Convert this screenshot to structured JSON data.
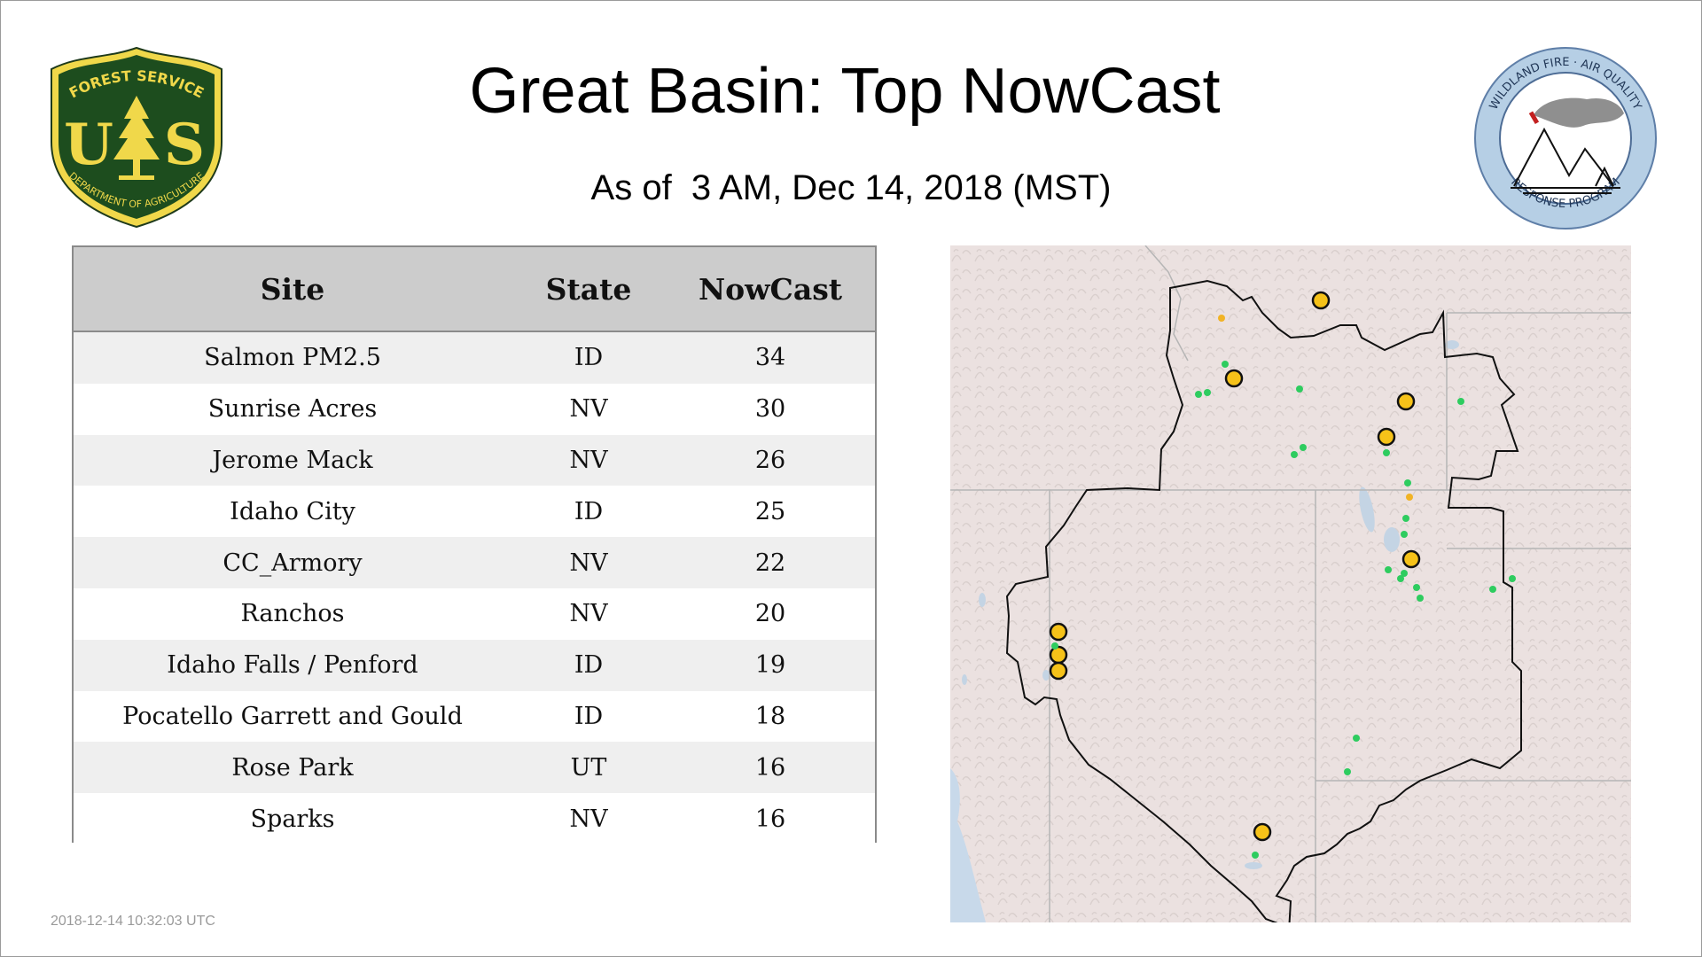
{
  "title": "Great Basin: Top NowCast",
  "subtitle": "As of  3 AM, Dec 14, 2018 (MST)",
  "logos": {
    "forest_service": {
      "top_text": "FOREST SERVICE",
      "letters_left": "U",
      "letters_right": "S",
      "bottom_text": "DEPARTMENT OF AGRICULTURE"
    },
    "wildland": {
      "top_text": "WILDLAND FIRE · AIR QUALITY",
      "bottom_text": "RESPONSE PROGRAM"
    }
  },
  "table": {
    "headers": {
      "site": "Site",
      "state": "State",
      "nowcast": "NowCast"
    },
    "rows": [
      {
        "site": "Salmon PM2.5",
        "state": "ID",
        "nowcast": "34"
      },
      {
        "site": "Sunrise Acres",
        "state": "NV",
        "nowcast": "30"
      },
      {
        "site": "Jerome Mack",
        "state": "NV",
        "nowcast": "26"
      },
      {
        "site": "Idaho City",
        "state": "ID",
        "nowcast": "25"
      },
      {
        "site": "CC_Armory",
        "state": "NV",
        "nowcast": "22"
      },
      {
        "site": "Ranchos",
        "state": "NV",
        "nowcast": "20"
      },
      {
        "site": "Idaho Falls / Penford",
        "state": "ID",
        "nowcast": "19"
      },
      {
        "site": "Pocatello Garrett and Gould",
        "state": "ID",
        "nowcast": "18"
      },
      {
        "site": "Rose Park",
        "state": "UT",
        "nowcast": "16"
      },
      {
        "site": "Sparks",
        "state": "NV",
        "nowcast": "16"
      }
    ]
  },
  "map": {
    "colors": {
      "land": "#e9dedd",
      "water": "#c4d4e4",
      "ocean": "#c8d9ea",
      "boundary": "#111111",
      "state_line": "#b5b5b5",
      "marker_yellow": "#f6c219",
      "marker_green": "#2ecc5f",
      "marker_orange": "#f1b325"
    }
  },
  "timestamp": "2018-12-14 10:32:03 UTC"
}
